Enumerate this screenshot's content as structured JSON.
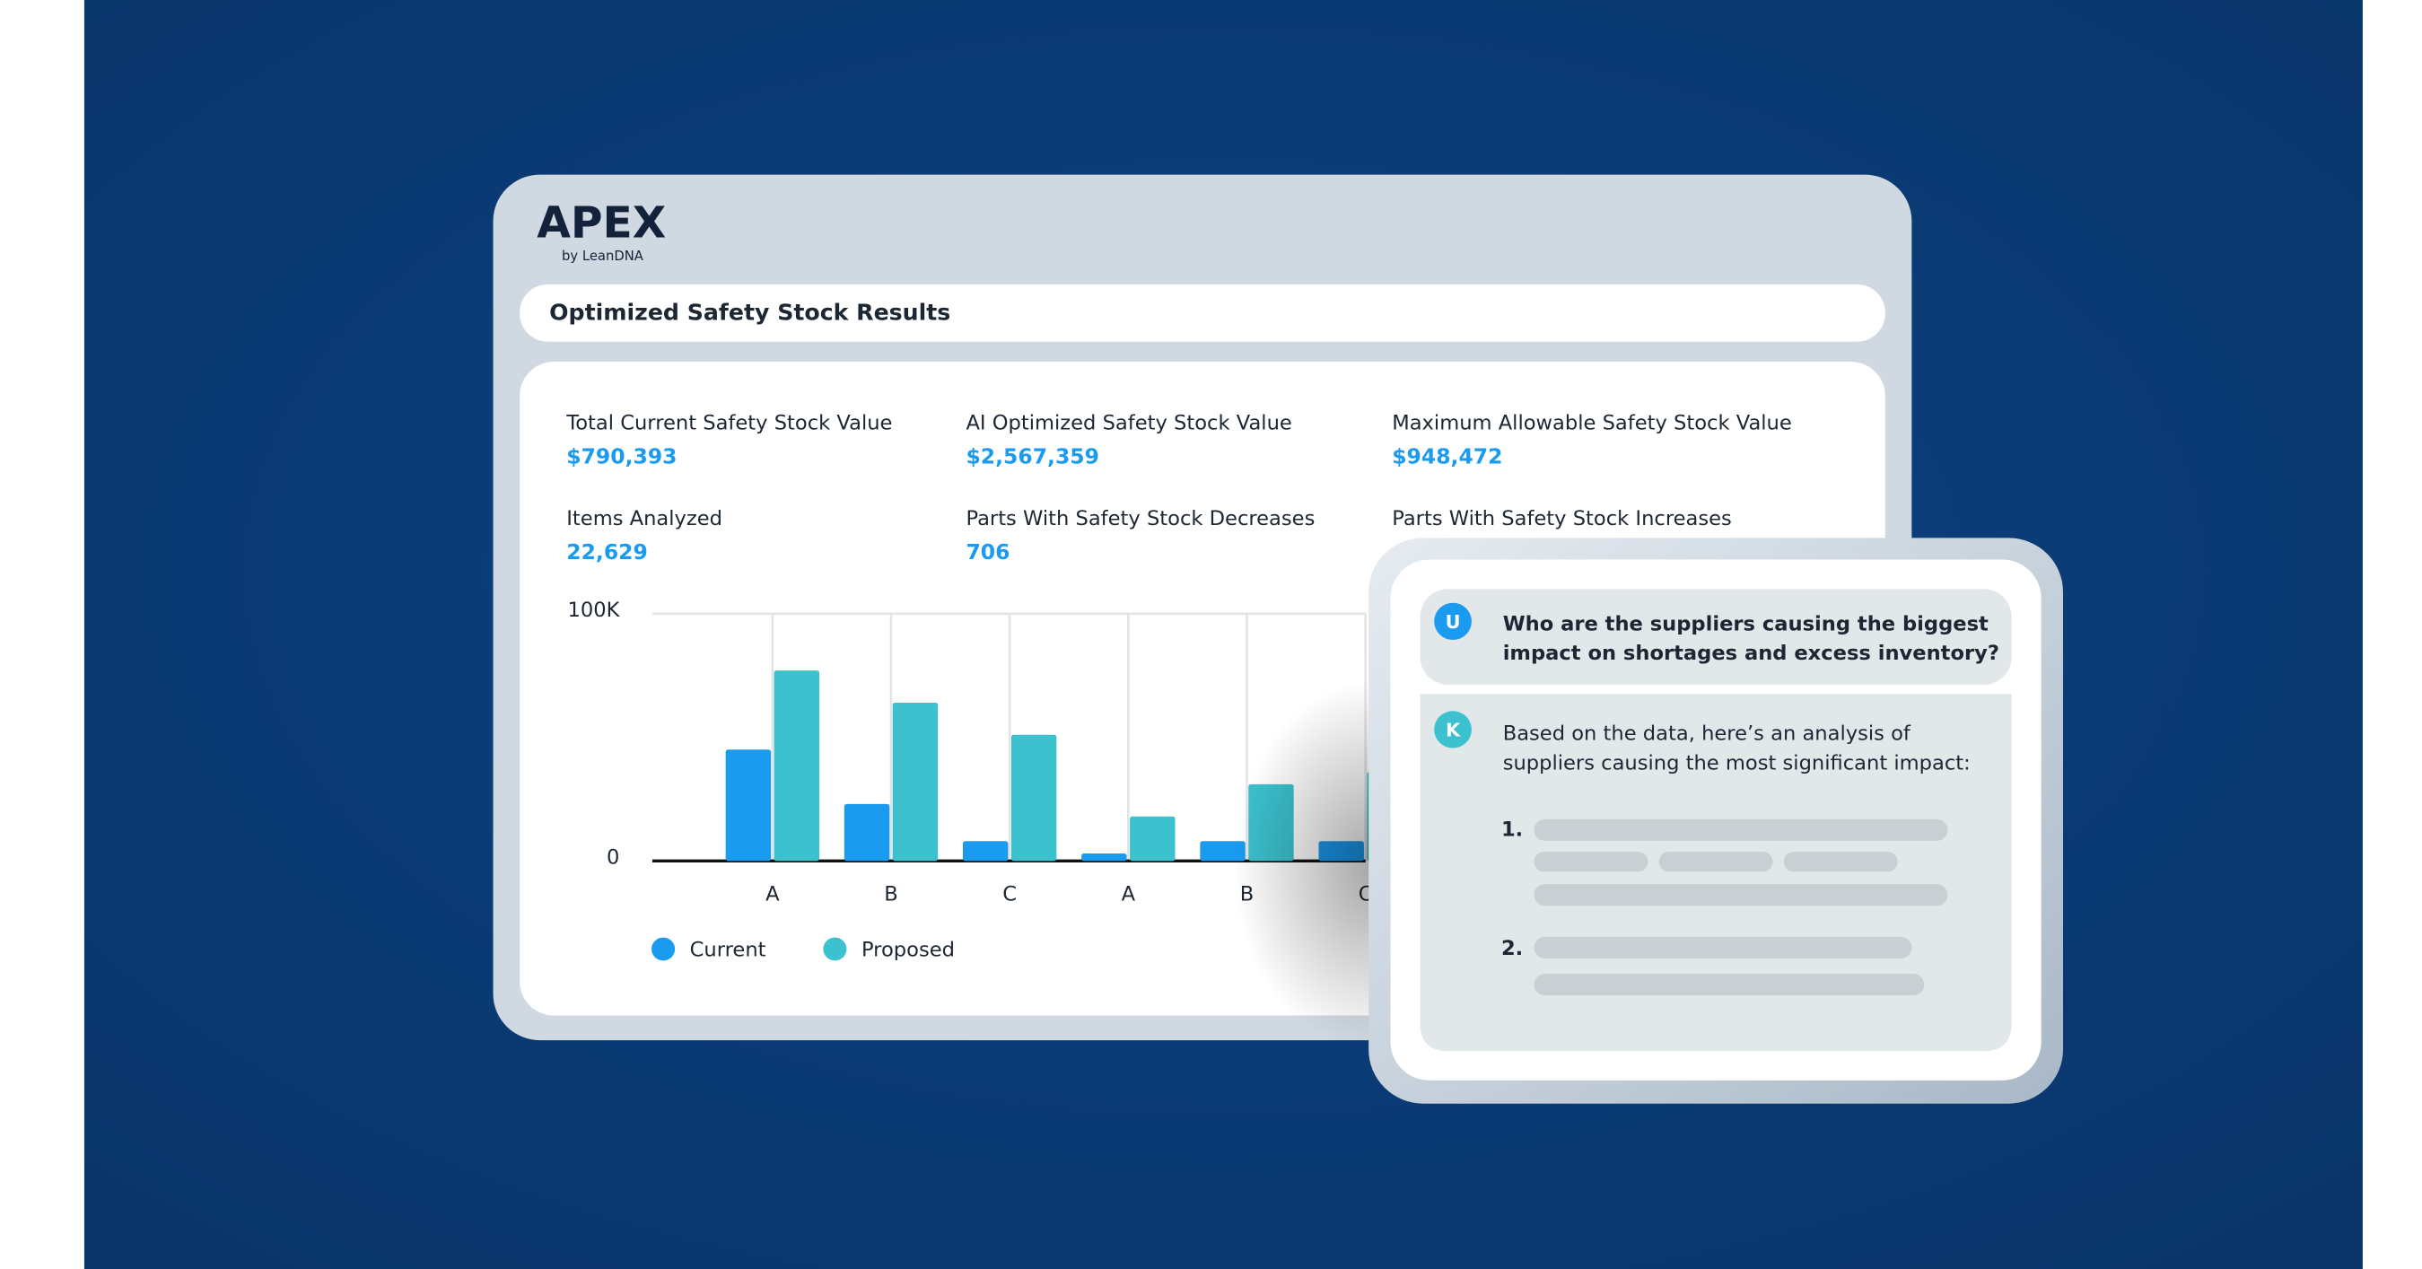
{
  "logo": {
    "name": "APEX",
    "byline": "by LeanDNA"
  },
  "header": {
    "title": "Optimized Safety Stock Results"
  },
  "stats": [
    {
      "label": "Total Current Safety Stock Value",
      "value": "$790,393"
    },
    {
      "label": "AI Optimized Safety Stock Value",
      "value": "$2,567,359"
    },
    {
      "label": "Maximum Allowable Safety Stock Value",
      "value": "$948,472"
    },
    {
      "label": "Items Analyzed",
      "value": "22,629"
    },
    {
      "label": "Parts With Safety Stock Decreases",
      "value": "706"
    },
    {
      "label": "Parts With Safety Stock Increases"
    }
  ],
  "chart": {
    "type": "bar",
    "categories": [
      "A",
      "B",
      "C",
      "A",
      "B",
      "C"
    ],
    "series": [
      {
        "name": "Current",
        "color": "#1a9bf0",
        "values": [
          45000,
          23000,
          8000,
          3000,
          8000,
          8000
        ]
      },
      {
        "name": "Proposed",
        "color": "#3cc1cf",
        "values": [
          77000,
          64000,
          51000,
          18000,
          31000,
          36000
        ]
      }
    ],
    "ylim": [
      0,
      100000
    ],
    "yticks": [
      0,
      {
        "value": 100000,
        "label": "100K"
      }
    ],
    "grid": true
  },
  "chat": {
    "question": {
      "avatar": "U",
      "lines": [
        "Who are the suppliers causing the biggest",
        "impact on shortages and excess inventory?"
      ]
    },
    "answer": {
      "avatar": "K",
      "lines": [
        "Based on the data, here’s an analysis of",
        "suppliers causing the most significant impact:"
      ],
      "items": [
        "1.",
        "2."
      ]
    }
  }
}
